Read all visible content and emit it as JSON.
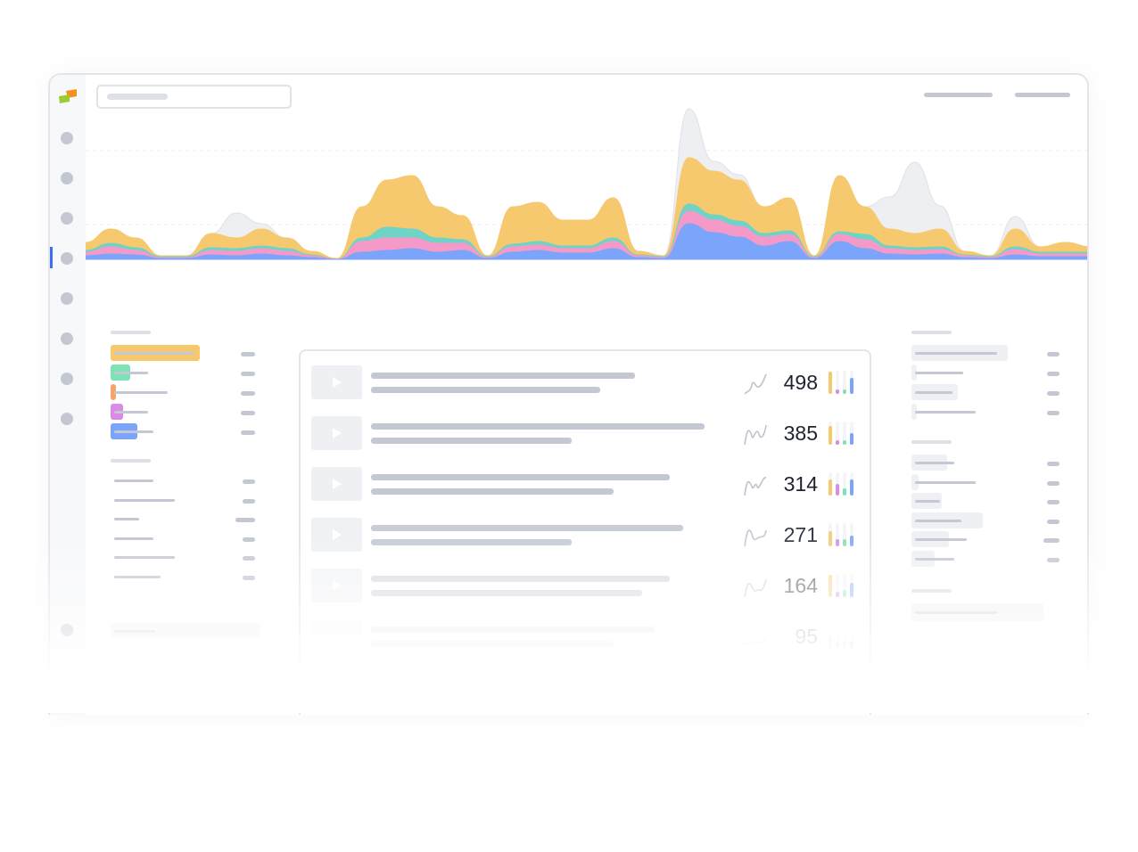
{
  "colors": {
    "accent": "#3b6ef5",
    "orange": "#f7c96e",
    "teal": "#6fd3c6",
    "pink": "#f59ac8",
    "blue": "#7aa5fb",
    "gray": "#e8e9ed",
    "purple": "#d98be6",
    "green": "#7ee3b4",
    "salmon": "#f7a36e"
  },
  "chart_data": {
    "type": "area",
    "stacked": true,
    "grid": true,
    "series": [
      {
        "color": "#7aa5fb",
        "values": [
          4,
          6,
          5,
          1,
          1,
          5,
          4,
          6,
          4,
          2,
          0,
          8,
          10,
          12,
          8,
          10,
          1,
          8,
          10,
          7,
          7,
          12,
          2,
          1,
          40,
          30,
          25,
          15,
          20,
          1,
          20,
          12,
          6,
          5,
          6,
          2,
          1,
          5,
          3,
          3,
          3
        ]
      },
      {
        "color": "#f59ac8",
        "values": [
          4,
          8,
          5,
          1,
          1,
          5,
          5,
          6,
          5,
          2,
          0,
          12,
          14,
          12,
          10,
          8,
          1,
          6,
          6,
          5,
          5,
          8,
          2,
          1,
          14,
          14,
          12,
          10,
          8,
          1,
          8,
          10,
          6,
          5,
          5,
          2,
          1,
          6,
          3,
          3,
          3
        ]
      },
      {
        "color": "#6fd3c6",
        "values": [
          2,
          4,
          3,
          1,
          1,
          3,
          3,
          3,
          3,
          1,
          0,
          4,
          12,
          10,
          6,
          4,
          1,
          3,
          4,
          3,
          3,
          4,
          1,
          1,
          8,
          6,
          6,
          4,
          4,
          1,
          3,
          6,
          3,
          3,
          3,
          1,
          1,
          3,
          2,
          2,
          2
        ]
      },
      {
        "color": "#f7c96e",
        "values": [
          9,
          16,
          11,
          1,
          1,
          16,
          12,
          19,
          12,
          4,
          1,
          35,
          53,
          60,
          35,
          27,
          1,
          42,
          44,
          29,
          29,
          45,
          4,
          1,
          52,
          49,
          46,
          30,
          37,
          1,
          63,
          31,
          19,
          16,
          20,
          4,
          1,
          20,
          6,
          11,
          6
        ]
      }
    ],
    "comparison": {
      "color": "#e8e9ed",
      "values": [
        19,
        34,
        24,
        4,
        4,
        29,
        52,
        40,
        24,
        9,
        1,
        59,
        89,
        94,
        59,
        49,
        4,
        59,
        64,
        44,
        44,
        69,
        9,
        4,
        169,
        110,
        95,
        59,
        69,
        4,
        94,
        59,
        70,
        109,
        60,
        9,
        4,
        48,
        14,
        19,
        14
      ]
    },
    "ylim": [
      0,
      180
    ]
  },
  "list": {
    "rows": [
      {
        "value": "498",
        "opacity": 1,
        "bars": [
          0.95,
          0.2,
          0.2,
          0.7
        ]
      },
      {
        "value": "385",
        "opacity": 1,
        "bars": [
          0.8,
          0.2,
          0.2,
          0.5
        ]
      },
      {
        "value": "314",
        "opacity": 1,
        "bars": [
          0.7,
          0.5,
          0.3,
          0.7
        ]
      },
      {
        "value": "271",
        "opacity": 0.9,
        "bars": [
          0.65,
          0.3,
          0.3,
          0.45
        ]
      },
      {
        "value": "164",
        "opacity": 0.6,
        "bars": [
          0.95,
          0.25,
          0.3,
          0.6
        ]
      },
      {
        "value": "95",
        "opacity": 0.3,
        "bars": [
          0.5,
          0.3,
          0.3,
          0.3
        ]
      }
    ]
  }
}
